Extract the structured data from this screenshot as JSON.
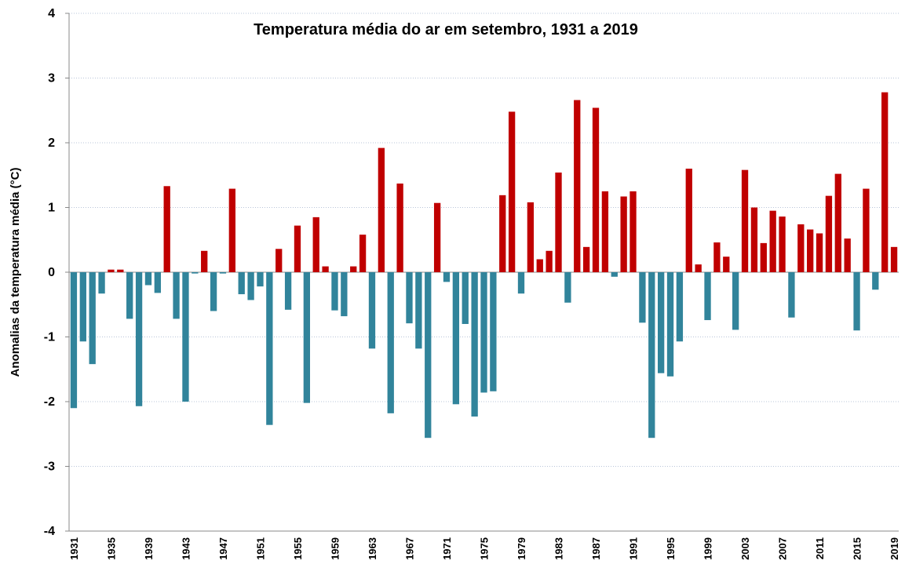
{
  "chart_data": {
    "type": "bar",
    "title": "Temperatura média do ar em setembro, 1931 a 2019",
    "y_label": "Anomalias da temperatura média (°C)",
    "categories": [
      "1931",
      null,
      null,
      null,
      "1935",
      null,
      null,
      null,
      "1939",
      null,
      null,
      null,
      "1943",
      null,
      null,
      null,
      "1947",
      null,
      null,
      null,
      "1951",
      null,
      null,
      null,
      "1955",
      null,
      null,
      null,
      "1959",
      null,
      null,
      null,
      "1963",
      null,
      null,
      null,
      "1967",
      null,
      null,
      null,
      "1971",
      null,
      null,
      null,
      "1975",
      null,
      null,
      null,
      "1979",
      null,
      null,
      null,
      "1983",
      null,
      null,
      null,
      "1987",
      null,
      null,
      null,
      "1991",
      null,
      null,
      null,
      "1995",
      null,
      null,
      null,
      "1999",
      null,
      null,
      null,
      "2003",
      null,
      null,
      null,
      "2007",
      null,
      null,
      null,
      "2011",
      null,
      null,
      null,
      "2015",
      null,
      null,
      null,
      "2019"
    ],
    "values": [
      -2.1,
      -1.07,
      -1.42,
      -0.33,
      0.04,
      0.04,
      -0.72,
      -2.07,
      -0.2,
      -0.32,
      1.33,
      -0.72,
      -2.0,
      -0.02,
      0.33,
      -0.6,
      -0.02,
      1.29,
      -0.34,
      -0.43,
      -0.22,
      -2.36,
      0.36,
      -0.58,
      0.72,
      -2.02,
      0.85,
      0.09,
      -0.59,
      -0.68,
      0.09,
      0.58,
      -1.18,
      1.92,
      -2.18,
      1.37,
      -0.79,
      -1.18,
      -2.56,
      1.07,
      -0.15,
      -2.04,
      -0.8,
      -2.23,
      -1.86,
      -1.84,
      1.19,
      2.48,
      -0.33,
      1.08,
      0.2,
      0.33,
      1.54,
      -0.47,
      2.66,
      0.39,
      2.54,
      1.25,
      -0.07,
      1.17,
      1.25,
      -0.78,
      -2.56,
      -1.56,
      -1.61,
      -1.07,
      1.6,
      0.12,
      -0.74,
      0.46,
      0.24,
      -0.89,
      1.58,
      1.0,
      0.45,
      0.95,
      0.86,
      -0.7,
      0.74,
      0.66,
      0.6,
      1.18,
      1.52,
      0.52,
      -0.9,
      1.29,
      -0.27,
      2.78,
      0.39
    ],
    "positive_color": "#c00000",
    "negative_color": "#31849b",
    "ylim": [
      -4,
      4
    ],
    "yticks": [
      -4,
      -3,
      -2,
      -1,
      0,
      1,
      2,
      3,
      4
    ],
    "grid": true
  }
}
